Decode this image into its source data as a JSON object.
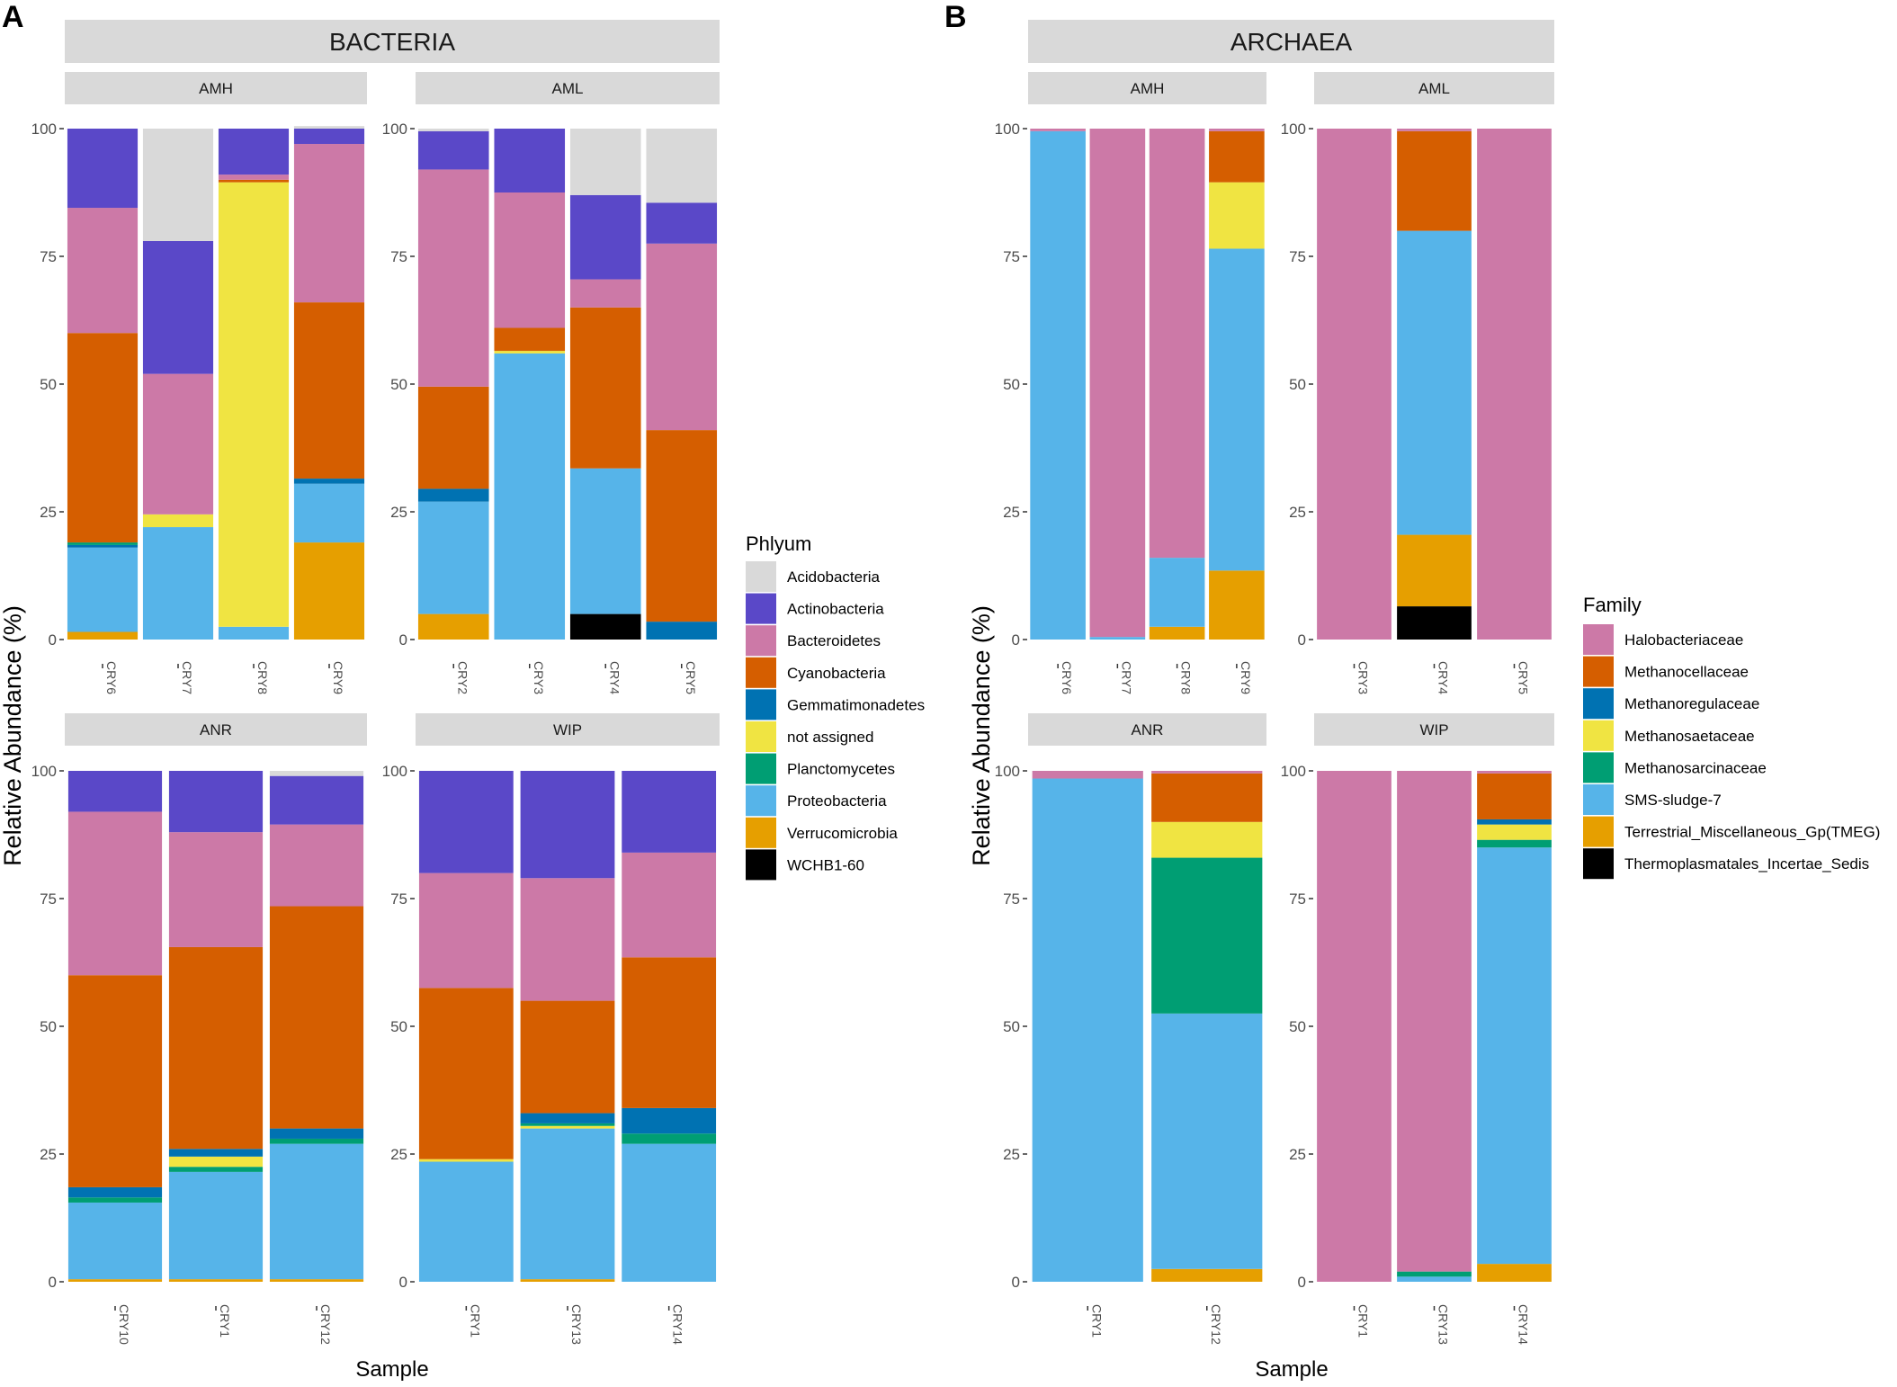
{
  "panel_labels": [
    "A",
    "B"
  ],
  "colors": {
    "strip_bg": "#d9d9d9",
    "axis": "#333333",
    "Acidobacteria": "#d9d9d9",
    "Actinobacteria": "#5a48c8",
    "Bacteroidetes": "#cc79a7",
    "Cyanobacteria": "#d55e00",
    "Gemmatimonadetes": "#0072b2",
    "not assigned": "#f0e442",
    "Planctomycetes": "#009e73",
    "Proteobacteria": "#56b4e9",
    "Verrucomicrobia": "#e69f00",
    "WCHB1-60": "#000000",
    "Halobacteriaceae": "#cc79a7",
    "Methanocellaceae": "#d55e00",
    "Methanoregulaceae": "#0072b2",
    "Methanosaetaceae": "#f0e442",
    "Methanosarcinaceae": "#009e73",
    "SMS-sludge-7": "#56b4e9",
    "Terrestrial_Miscellaneous_Gp(TMEG)": "#e69f00",
    "Thermoplasmatales_Incertae_Sedis": "#000000"
  },
  "chart_data": [
    {
      "type": "bar",
      "stacked": true,
      "panel": "A",
      "title": "BACTERIA",
      "xlabel": "Sample",
      "ylabel": "Relative Abundance (%)",
      "ylim": [
        0,
        100
      ],
      "yticks": [
        "0",
        "25",
        "50",
        "75",
        "100"
      ],
      "legend": {
        "title": "Phlyum",
        "items": [
          "Acidobacteria",
          "Actinobacteria",
          "Bacteroidetes",
          "Cyanobacteria",
          "Gemmatimonadetes",
          "not assigned",
          "Planctomycetes",
          "Proteobacteria",
          "Verrucomicrobia",
          "WCHB1-60"
        ]
      },
      "facets": [
        {
          "name": "AMH",
          "categories": [
            "CRY6",
            "CRY7",
            "CRY8",
            "CRY9"
          ],
          "stacks": [
            [
              [
                "Verrucomicrobia",
                1.5
              ],
              [
                "Proteobacteria",
                16.5
              ],
              [
                "Gemmatimonadetes",
                0.5
              ],
              [
                "Planctomycetes",
                0.5
              ],
              [
                "Cyanobacteria",
                41
              ],
              [
                "Bacteroidetes",
                24.5
              ],
              [
                "Actinobacteria",
                15.5
              ]
            ],
            [
              [
                "Proteobacteria",
                22
              ],
              [
                "not assigned",
                2.5
              ],
              [
                "Bacteroidetes",
                27.5
              ],
              [
                "Actinobacteria",
                26
              ],
              [
                "Acidobacteria",
                22
              ]
            ],
            [
              [
                "Proteobacteria",
                2.5
              ],
              [
                "not assigned",
                87
              ],
              [
                "Cyanobacteria",
                0.5
              ],
              [
                "Bacteroidetes",
                1
              ],
              [
                "Actinobacteria",
                9
              ]
            ],
            [
              [
                "Verrucomicrobia",
                19
              ],
              [
                "Proteobacteria",
                11.5
              ],
              [
                "Gemmatimonadetes",
                1
              ],
              [
                "Cyanobacteria",
                34.5
              ],
              [
                "Bacteroidetes",
                31
              ],
              [
                "Actinobacteria",
                3
              ],
              [
                "Acidobacteria",
                0.5
              ]
            ]
          ]
        },
        {
          "name": "AML",
          "categories": [
            "CRY2",
            "CRY3",
            "CRY4",
            "CRY5"
          ],
          "stacks": [
            [
              [
                "Verrucomicrobia",
                5
              ],
              [
                "Proteobacteria",
                22
              ],
              [
                "Gemmatimonadetes",
                2.5
              ],
              [
                "Cyanobacteria",
                20
              ],
              [
                "Bacteroidetes",
                42.5
              ],
              [
                "Actinobacteria",
                7.5
              ],
              [
                "Acidobacteria",
                0.5
              ]
            ],
            [
              [
                "Proteobacteria",
                56
              ],
              [
                "not assigned",
                0.5
              ],
              [
                "Cyanobacteria",
                4.5
              ],
              [
                "Bacteroidetes",
                26.5
              ],
              [
                "Actinobacteria",
                12.5
              ]
            ],
            [
              [
                "WCHB1-60",
                5
              ],
              [
                "Proteobacteria",
                28.5
              ],
              [
                "Cyanobacteria",
                31.5
              ],
              [
                "Bacteroidetes",
                5.5
              ],
              [
                "Actinobacteria",
                16.5
              ],
              [
                "Acidobacteria",
                13
              ]
            ],
            [
              [
                "Gemmatimonadetes",
                3.5
              ],
              [
                "Cyanobacteria",
                37.5
              ],
              [
                "Bacteroidetes",
                36.5
              ],
              [
                "Actinobacteria",
                8
              ],
              [
                "Acidobacteria",
                14.5
              ]
            ]
          ]
        },
        {
          "name": "ANR",
          "categories": [
            "CRY10",
            "CRY1",
            "CRY12"
          ],
          "stacks": [
            [
              [
                "Verrucomicrobia",
                0.5
              ],
              [
                "Proteobacteria",
                15
              ],
              [
                "Planctomycetes",
                1
              ],
              [
                "Gemmatimonadetes",
                2
              ],
              [
                "Cyanobacteria",
                41.5
              ],
              [
                "Bacteroidetes",
                32
              ],
              [
                "Actinobacteria",
                8
              ]
            ],
            [
              [
                "Verrucomicrobia",
                0.5
              ],
              [
                "Proteobacteria",
                21
              ],
              [
                "Planctomycetes",
                1
              ],
              [
                "not assigned",
                2
              ],
              [
                "Gemmatimonadetes",
                1.5
              ],
              [
                "Cyanobacteria",
                39.5
              ],
              [
                "Bacteroidetes",
                22.5
              ],
              [
                "Actinobacteria",
                12
              ]
            ],
            [
              [
                "Verrucomicrobia",
                0.5
              ],
              [
                "Proteobacteria",
                26.5
              ],
              [
                "Planctomycetes",
                1
              ],
              [
                "Gemmatimonadetes",
                2
              ],
              [
                "Cyanobacteria",
                43.5
              ],
              [
                "Bacteroidetes",
                16
              ],
              [
                "Actinobacteria",
                9.5
              ],
              [
                "Acidobacteria",
                1
              ]
            ]
          ]
        },
        {
          "name": "WIP",
          "categories": [
            "CRY1",
            "CRY13",
            "CRY14"
          ],
          "stacks": [
            [
              [
                "Proteobacteria",
                23.5
              ],
              [
                "not assigned",
                0.5
              ],
              [
                "Cyanobacteria",
                33.5
              ],
              [
                "Bacteroidetes",
                22.5
              ],
              [
                "Actinobacteria",
                20
              ]
            ],
            [
              [
                "Verrucomicrobia",
                0.5
              ],
              [
                "Proteobacteria",
                29.5
              ],
              [
                "not assigned",
                0.5
              ],
              [
                "Planctomycetes",
                0.5
              ],
              [
                "Gemmatimonadetes",
                2
              ],
              [
                "Cyanobacteria",
                22
              ],
              [
                "Bacteroidetes",
                24
              ],
              [
                "Actinobacteria",
                21
              ]
            ],
            [
              [
                "Proteobacteria",
                27
              ],
              [
                "Planctomycetes",
                2
              ],
              [
                "Gemmatimonadetes",
                5
              ],
              [
                "Cyanobacteria",
                29.5
              ],
              [
                "Bacteroidetes",
                20.5
              ],
              [
                "Actinobacteria",
                16
              ]
            ]
          ]
        }
      ]
    },
    {
      "type": "bar",
      "stacked": true,
      "panel": "B",
      "title": "ARCHAEA",
      "xlabel": "Sample",
      "ylabel": "Relative Abundance (%)",
      "ylim": [
        0,
        100
      ],
      "yticks": [
        "0",
        "25",
        "50",
        "75",
        "100"
      ],
      "legend": {
        "title": "Family",
        "items": [
          "Halobacteriaceae",
          "Methanocellaceae",
          "Methanoregulaceae",
          "Methanosaetaceae",
          "Methanosarcinaceae",
          "SMS-sludge-7",
          "Terrestrial_Miscellaneous_Gp(TMEG)",
          "Thermoplasmatales_Incertae_Sedis"
        ]
      },
      "facets": [
        {
          "name": "AMH",
          "categories": [
            "CRY6",
            "CRY7",
            "CRY8",
            "CRY9"
          ],
          "stacks": [
            [
              [
                "SMS-sludge-7",
                99.5
              ],
              [
                "Halobacteriaceae",
                0.5
              ]
            ],
            [
              [
                "SMS-sludge-7",
                0.5
              ],
              [
                "Halobacteriaceae",
                99.5
              ]
            ],
            [
              [
                "Terrestrial_Miscellaneous_Gp(TMEG)",
                2.5
              ],
              [
                "SMS-sludge-7",
                13.5
              ],
              [
                "Halobacteriaceae",
                84
              ]
            ],
            [
              [
                "Terrestrial_Miscellaneous_Gp(TMEG)",
                13.5
              ],
              [
                "SMS-sludge-7",
                63
              ],
              [
                "Methanosaetaceae",
                13
              ],
              [
                "Methanocellaceae",
                10
              ],
              [
                "Halobacteriaceae",
                0.5
              ]
            ]
          ]
        },
        {
          "name": "AML",
          "categories": [
            "CRY3",
            "CRY4",
            "CRY5"
          ],
          "stacks": [
            [
              [
                "Halobacteriaceae",
                100
              ]
            ],
            [
              [
                "Thermoplasmatales_Incertae_Sedis",
                6.5
              ],
              [
                "Terrestrial_Miscellaneous_Gp(TMEG)",
                14
              ],
              [
                "SMS-sludge-7",
                59.5
              ],
              [
                "Methanocellaceae",
                19.5
              ],
              [
                "Halobacteriaceae",
                0.5
              ]
            ],
            [
              [
                "Halobacteriaceae",
                100
              ]
            ]
          ]
        },
        {
          "name": "ANR",
          "categories": [
            "CRY1",
            "CRY12"
          ],
          "stacks": [
            [
              [
                "SMS-sludge-7",
                98.5
              ],
              [
                "Halobacteriaceae",
                1.5
              ]
            ],
            [
              [
                "Terrestrial_Miscellaneous_Gp(TMEG)",
                2.5
              ],
              [
                "SMS-sludge-7",
                50
              ],
              [
                "Methanosarcinaceae",
                30.5
              ],
              [
                "Methanosaetaceae",
                7
              ],
              [
                "Methanocellaceae",
                9.5
              ],
              [
                "Halobacteriaceae",
                0.5
              ]
            ]
          ]
        },
        {
          "name": "WIP",
          "categories": [
            "CRY1",
            "CRY13",
            "CRY14"
          ],
          "stacks": [
            [
              [
                "Halobacteriaceae",
                100
              ]
            ],
            [
              [
                "SMS-sludge-7",
                1
              ],
              [
                "Methanosarcinaceae",
                1
              ],
              [
                "Halobacteriaceae",
                98
              ]
            ],
            [
              [
                "Terrestrial_Miscellaneous_Gp(TMEG)",
                3.5
              ],
              [
                "SMS-sludge-7",
                81.5
              ],
              [
                "Methanosarcinaceae",
                1.5
              ],
              [
                "Methanosaetaceae",
                3
              ],
              [
                "Methanoregulaceae",
                1
              ],
              [
                "Methanocellaceae",
                9
              ],
              [
                "Halobacteriaceae",
                0.5
              ]
            ]
          ]
        }
      ]
    }
  ]
}
